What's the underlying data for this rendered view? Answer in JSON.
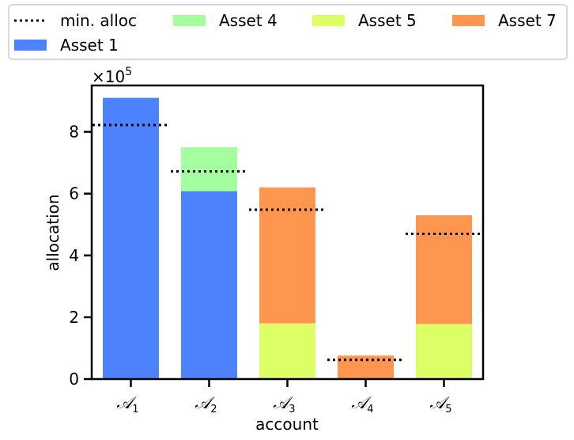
{
  "chart_data": {
    "type": "bar",
    "stacked": true,
    "xlabel": "account",
    "ylabel": "allocation",
    "y_multiplier_label": "×10",
    "y_multiplier_exponent": "5",
    "y_multiplier": 100000,
    "ylim": [
      0,
      950000
    ],
    "yticks": [
      0,
      200000,
      400000,
      600000,
      800000
    ],
    "ytick_labels": [
      "0",
      "2",
      "4",
      "6",
      "8"
    ],
    "categories": [
      {
        "symbol": "𝒜",
        "sub": "1"
      },
      {
        "symbol": "𝒜",
        "sub": "2"
      },
      {
        "symbol": "𝒜",
        "sub": "3"
      },
      {
        "symbol": "𝒜",
        "sub": "4"
      },
      {
        "symbol": "𝒜",
        "sub": "5"
      }
    ],
    "series": [
      {
        "name": "Asset 1",
        "color": "#4d82ff",
        "values": [
          910000,
          608000,
          0,
          0,
          0
        ]
      },
      {
        "name": "Asset 4",
        "color": "#a4ff9e",
        "values": [
          0,
          142000,
          0,
          0,
          0
        ]
      },
      {
        "name": "Asset 5",
        "color": "#ddff66",
        "values": [
          0,
          0,
          180000,
          0,
          178000
        ]
      },
      {
        "name": "Asset 7",
        "color": "#ff9650",
        "values": [
          0,
          0,
          440000,
          76000,
          352000
        ]
      }
    ],
    "min_alloc": {
      "name": "min. alloc",
      "values": [
        822000,
        672000,
        548000,
        62000,
        470000
      ]
    },
    "legend": {
      "placement": "top",
      "entries": [
        "min. alloc",
        "Asset 4",
        "Asset 5",
        "Asset 7",
        "Asset 1"
      ]
    }
  }
}
